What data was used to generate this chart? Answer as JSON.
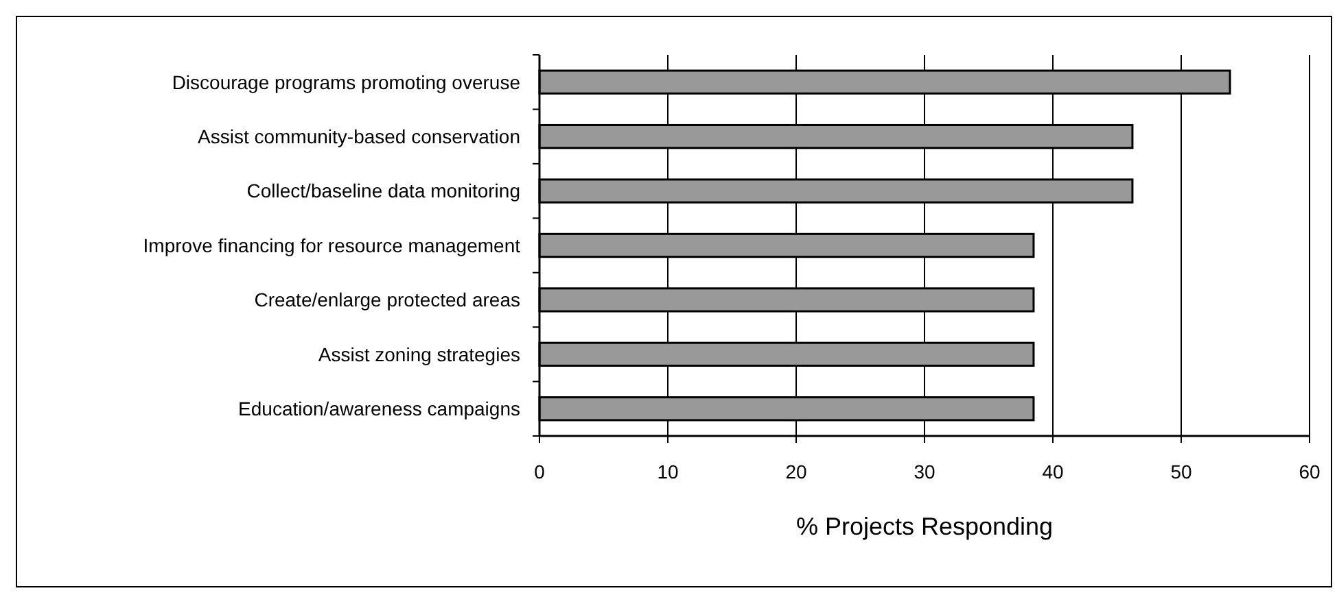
{
  "chart_data": {
    "type": "bar",
    "orientation": "horizontal",
    "xlabel": "% Projects Responding",
    "categories": [
      "Discourage programs promoting overuse",
      "Assist community-based conservation",
      "Collect/baseline data monitoring",
      "Improve financing for resource management",
      "Create/enlarge protected areas",
      "Assist zoning strategies",
      "Education/awareness campaigns"
    ],
    "values": [
      53.8,
      46.2,
      46.2,
      38.5,
      38.5,
      38.5,
      38.5
    ],
    "color": "#999999",
    "xlim": [
      0,
      60
    ],
    "xticks": [
      0,
      10,
      20,
      30,
      40,
      50,
      60
    ],
    "grid": "x"
  }
}
